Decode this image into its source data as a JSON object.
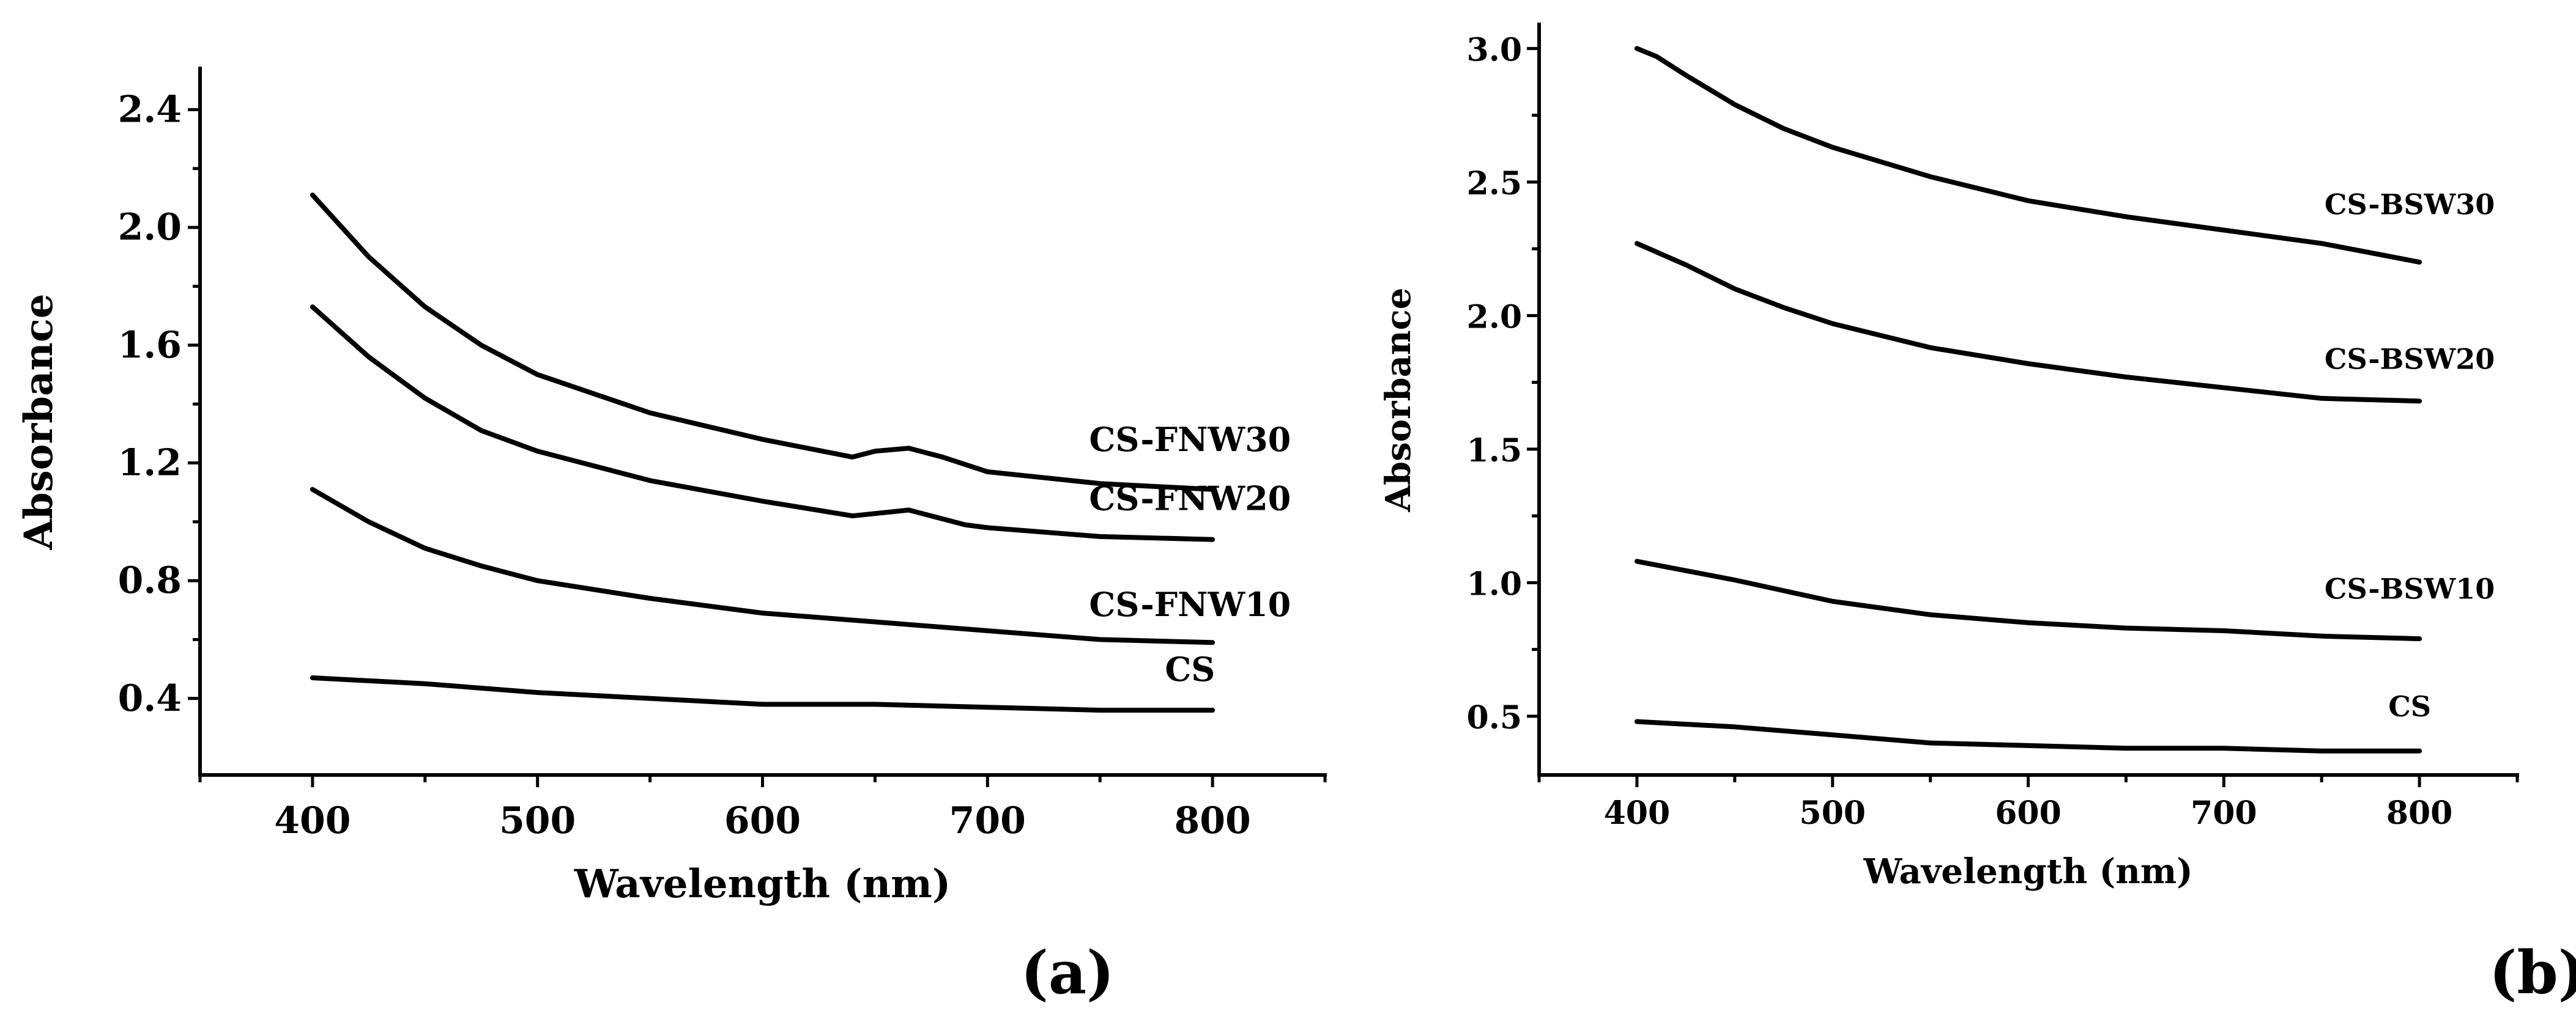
{
  "chart_data": [
    {
      "type": "line",
      "panel_label": "(a)",
      "xlabel": "Wavelength (nm)",
      "ylabel": "Absorbance",
      "xlim": [
        350,
        850
      ],
      "ylim": [
        0.14,
        2.54
      ],
      "xticks": [
        400,
        500,
        600,
        700,
        800
      ],
      "xtick_labels": [
        "400",
        "500",
        "600",
        "700",
        "800"
      ],
      "yticks": [
        0.4,
        0.8,
        1.2,
        1.6,
        2.0,
        2.4
      ],
      "ytick_labels": [
        "0.4",
        "0.8",
        "1.2",
        "1.6",
        "2.0",
        "2.4"
      ],
      "grid": false,
      "series": [
        {
          "name": "CS-FNW30",
          "label_anchor": [
            790,
            1.24
          ],
          "x": [
            400,
            425,
            450,
            475,
            500,
            550,
            600,
            640,
            650,
            665,
            680,
            700,
            750,
            800
          ],
          "y": [
            2.11,
            1.9,
            1.73,
            1.6,
            1.5,
            1.37,
            1.28,
            1.22,
            1.24,
            1.25,
            1.22,
            1.17,
            1.13,
            1.11
          ]
        },
        {
          "name": "CS-FNW20",
          "label_anchor": [
            790,
            1.04
          ],
          "x": [
            400,
            425,
            450,
            475,
            500,
            550,
            600,
            640,
            665,
            690,
            700,
            750,
            800
          ],
          "y": [
            1.73,
            1.56,
            1.42,
            1.31,
            1.24,
            1.14,
            1.07,
            1.02,
            1.04,
            0.99,
            0.98,
            0.95,
            0.94
          ]
        },
        {
          "name": "CS-FNW10",
          "label_anchor": [
            790,
            0.68
          ],
          "x": [
            400,
            425,
            450,
            475,
            500,
            550,
            600,
            650,
            700,
            750,
            800
          ],
          "y": [
            1.11,
            1.0,
            0.91,
            0.85,
            0.8,
            0.74,
            0.69,
            0.66,
            0.63,
            0.6,
            0.59
          ]
        },
        {
          "name": "CS",
          "label_anchor": [
            790,
            0.46
          ],
          "x": [
            400,
            450,
            500,
            550,
            600,
            650,
            700,
            750,
            800
          ],
          "y": [
            0.47,
            0.45,
            0.42,
            0.4,
            0.38,
            0.38,
            0.37,
            0.36,
            0.36
          ]
        }
      ]
    },
    {
      "type": "line",
      "panel_label": "(b)",
      "xlabel": "Wavelength (nm)",
      "ylabel": "Absorbance",
      "xlim": [
        350,
        850
      ],
      "ylim": [
        0.28,
        3.09
      ],
      "xticks": [
        400,
        500,
        600,
        700,
        800
      ],
      "xtick_labels": [
        "400",
        "500",
        "600",
        "700",
        "800"
      ],
      "yticks": [
        0.5,
        1.0,
        1.5,
        2.0,
        2.5,
        3.0
      ],
      "ytick_labels": [
        "0.5",
        "1.0",
        "1.5",
        "2.0",
        "2.5",
        "3.0"
      ],
      "grid": false,
      "series": [
        {
          "name": "CS-BSW30",
          "label_anchor": [
            795,
            2.38
          ],
          "x": [
            400,
            410,
            425,
            450,
            475,
            500,
            550,
            600,
            650,
            700,
            750,
            800
          ],
          "y": [
            3.0,
            2.97,
            2.9,
            2.79,
            2.7,
            2.63,
            2.52,
            2.43,
            2.37,
            2.32,
            2.27,
            2.2
          ]
        },
        {
          "name": "CS-BSW20",
          "label_anchor": [
            795,
            1.8
          ],
          "x": [
            400,
            425,
            450,
            475,
            500,
            550,
            600,
            650,
            700,
            750,
            800
          ],
          "y": [
            2.27,
            2.19,
            2.1,
            2.03,
            1.97,
            1.88,
            1.82,
            1.77,
            1.73,
            1.69,
            1.68
          ]
        },
        {
          "name": "CS-BSW10",
          "label_anchor": [
            795,
            0.94
          ],
          "x": [
            400,
            450,
            500,
            550,
            600,
            650,
            700,
            750,
            800
          ],
          "y": [
            1.08,
            1.01,
            0.93,
            0.88,
            0.85,
            0.83,
            0.82,
            0.8,
            0.79
          ]
        },
        {
          "name": "CS",
          "label_anchor": [
            795,
            0.5
          ],
          "x": [
            400,
            450,
            500,
            550,
            600,
            650,
            700,
            750,
            800
          ],
          "y": [
            0.48,
            0.46,
            0.43,
            0.4,
            0.39,
            0.38,
            0.38,
            0.37,
            0.37
          ]
        }
      ]
    }
  ]
}
